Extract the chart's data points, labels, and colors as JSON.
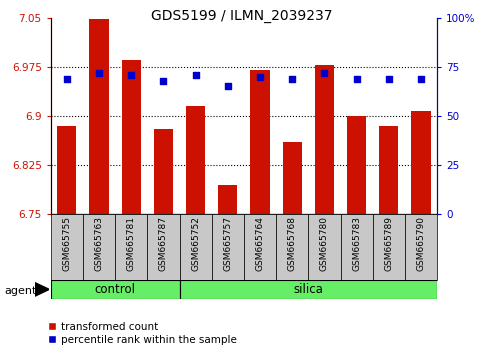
{
  "title": "GDS5199 / ILMN_2039237",
  "samples": [
    "GSM665755",
    "GSM665763",
    "GSM665781",
    "GSM665787",
    "GSM665752",
    "GSM665757",
    "GSM665764",
    "GSM665768",
    "GSM665780",
    "GSM665783",
    "GSM665789",
    "GSM665790"
  ],
  "groups": [
    "control",
    "control",
    "control",
    "control",
    "silica",
    "silica",
    "silica",
    "silica",
    "silica",
    "silica",
    "silica",
    "silica"
  ],
  "bar_values": [
    6.885,
    7.048,
    6.985,
    6.88,
    6.915,
    6.795,
    6.97,
    6.86,
    6.978,
    6.9,
    6.885,
    6.908
  ],
  "dot_values": [
    69,
    72,
    71,
    68,
    71,
    65,
    70,
    69,
    72,
    69,
    69,
    69
  ],
  "ymin": 6.75,
  "ymax": 7.05,
  "yticks": [
    6.75,
    6.825,
    6.9,
    6.975,
    7.05
  ],
  "y2min": 0,
  "y2max": 100,
  "y2ticks": [
    0,
    25,
    50,
    75,
    100
  ],
  "y2ticklabels": [
    "0",
    "25",
    "50",
    "75",
    "100%"
  ],
  "bar_color": "#cc1100",
  "dot_color": "#0000cc",
  "green_color": "#66ee66",
  "agent_label": "agent",
  "background_color": "#ffffff",
  "tick_area_color": "#c8c8c8",
  "control_n": 4,
  "silica_n": 8,
  "grid_yticks": [
    6.825,
    6.9,
    6.975
  ]
}
